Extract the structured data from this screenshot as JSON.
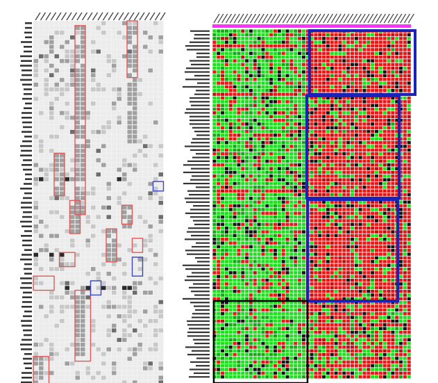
{
  "figure": {
    "left_panel": {
      "kind": "binary-feature-matrix",
      "colors": {
        "background": "#f2f2f2",
        "grid_line": "#ffffff",
        "absent": "#ececec",
        "present_light": "#c8c8c8",
        "present_mid": "#a0a0a0",
        "present_dark": "#6e6e6e",
        "present_black": "#2b2b2b",
        "highlight_red": "#e05a5a",
        "highlight_blue": "#3b45c8"
      },
      "highlight_boxes": [
        {
          "color": "red",
          "label": ""
        },
        {
          "color": "red",
          "label": ""
        },
        {
          "color": "red",
          "label": ""
        },
        {
          "color": "red",
          "label": ""
        },
        {
          "color": "red",
          "label": ""
        },
        {
          "color": "red",
          "label": ""
        },
        {
          "color": "red",
          "label": ""
        },
        {
          "color": "red",
          "label": ""
        },
        {
          "color": "red",
          "label": ""
        },
        {
          "color": "red",
          "label": ""
        },
        {
          "color": "red",
          "label": ""
        },
        {
          "color": "blue",
          "label": ""
        },
        {
          "color": "blue",
          "label": ""
        },
        {
          "color": "blue",
          "label": ""
        }
      ]
    },
    "right_panel": {
      "kind": "expression-heatmap",
      "colors": {
        "high": "#e81818",
        "low": "#1ee01e",
        "mid": "#141414",
        "grid_line": "#ffffff",
        "sample_group_bar": "#ff33ff",
        "box_blue": "#1a22b8",
        "box_black": "#000000"
      },
      "sample_group_bar_label": "",
      "highlight_boxes": [
        {
          "color": "blue",
          "label": ""
        },
        {
          "color": "blue",
          "label": ""
        },
        {
          "color": "blue",
          "label": ""
        },
        {
          "color": "black",
          "label": ""
        }
      ]
    }
  }
}
